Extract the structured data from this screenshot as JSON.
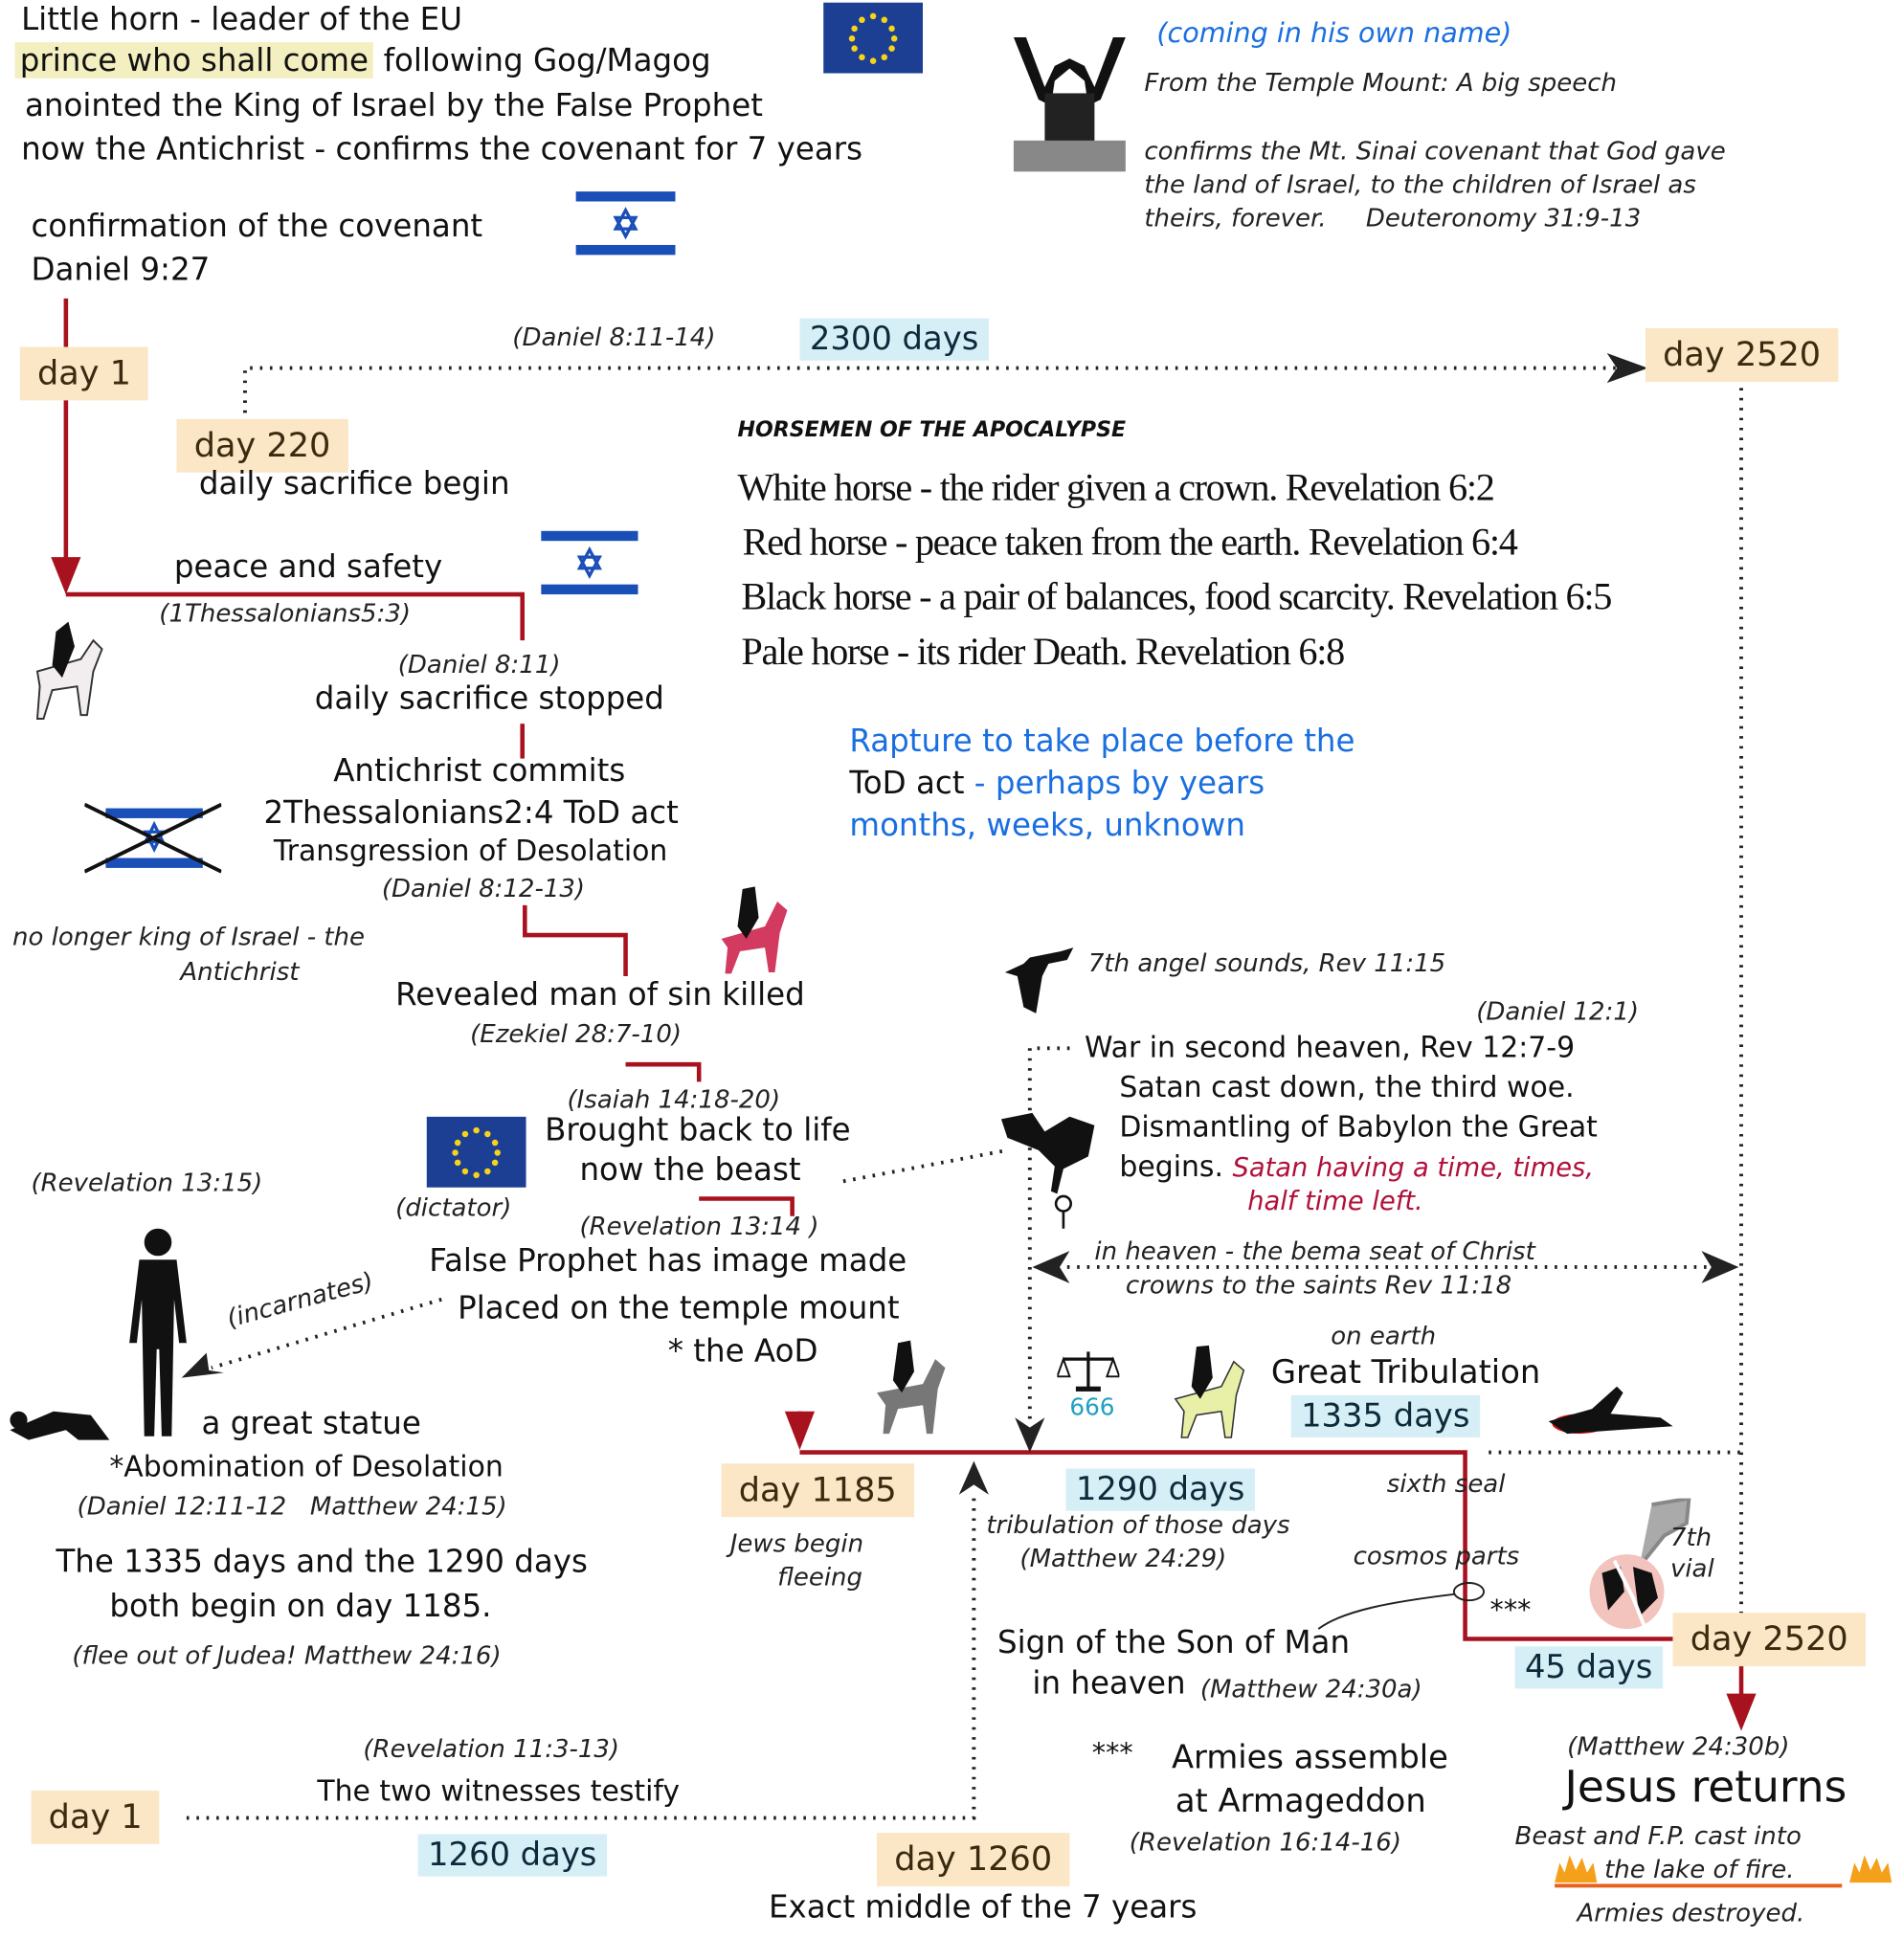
{
  "header": {
    "line1": "Little horn - leader of the EU",
    "line2_highlight": "prince who shall come",
    "line2_rest": "following Gog/Magog",
    "line3": "anointed the King of Israel by the False Prophet",
    "line4": "now the Antichrist - confirms the covenant for 7 years"
  },
  "speech": {
    "coming": "(coming in his own name)",
    "from": "From the Temple Mount:  A big speech",
    "confirms1": "confirms the Mt. Sinai covenant that God gave",
    "confirms2": "the land of Israel, to the children of Israel as",
    "confirms3": "theirs, forever.     Deuteronomy 31:9-13"
  },
  "covenant": {
    "line1": "confirmation of the covenant",
    "line2": "Daniel 9:27"
  },
  "timeline_top": {
    "day1": "day 1",
    "daniel81114": "(Daniel 8:11-14)",
    "days2300": "2300 days",
    "day2520": "day 2520",
    "day220": "day 220",
    "daily_begin": "daily sacrifice begin"
  },
  "horsemen": {
    "title": "HORSEMEN OF THE APOCALYPSE",
    "items": [
      "White horse - the rider given a crown.  Revelation 6:2",
      "Red horse - peace taken from the earth.  Revelation 6:4",
      "Black horse - a pair of balances, food scarcity.   Revelation 6:5",
      "Pale horse - its rider Death.   Revelation 6:8"
    ]
  },
  "rapture": {
    "line1": "Rapture to take place before the",
    "line2_black": "ToD act",
    "line2_blue": " - perhaps by years",
    "line3": "months, weeks, unknown",
    "color": "#1a6fe0"
  },
  "left_events": {
    "peace": "peace and safety",
    "thess": "(1Thessalonians5:3)",
    "daniel811": "(Daniel 8:11)",
    "stopped": "daily sacrifice stopped",
    "commits": "Antichrist commits",
    "tod": "2Thessalonians2:4 ToD act",
    "transgression": "Transgression of Desolation",
    "daniel81213": "(Daniel 8:12-13)",
    "nolonger1": "no longer king of Israel - the",
    "nolonger2": "Antichrist",
    "revealed": "Revealed man of sin killed",
    "ezekiel": "(Ezekiel 28:7-10)",
    "isaiah": "(Isaiah 14:18-20)",
    "brought": "Brought back to life",
    "beast": "now the beast",
    "dictator": "(dictator)",
    "rev1314": "(Revelation 13:14 )",
    "rev1315": "(Revelation 13:15)",
    "fp1": "False Prophet has image made",
    "fp2": "Placed on the temple mount",
    "fp3": "* the AoD",
    "incarnates": "(incarnates)",
    "statue": "a great statue",
    "aod": "*Abomination of Desolation",
    "dan_matt": "(Daniel 12:11-12   Matthew 24:15)",
    "both1": "The 1335 days and the 1290 days",
    "both2": "both begin on day 1185.",
    "flee": "(flee out of Judea! Matthew 24:16)"
  },
  "heaven": {
    "angel": "7th angel sounds, Rev 11:15",
    "daniel121": "(Daniel 12:1)",
    "war": "War in second heaven, Rev 12:7-9",
    "satan": "Satan cast down, the third woe.",
    "dismantling": "Dismantling of Babylon the Great",
    "begins": "begins.",
    "time1": "Satan having a time, times,",
    "time2": "half time left.",
    "bema1": "in heaven - the bema seat of Christ",
    "bema2": "crowns to the saints Rev 11:18",
    "time_color": "#b0103a"
  },
  "tribulation": {
    "mark666": "666",
    "on_earth": "on earth",
    "great": "Great Tribulation",
    "days1335": "1335 days",
    "day1185": "day 1185",
    "jews1": "Jews begin",
    "jews2": "fleeing",
    "days1290": "1290 days",
    "trib1": "tribulation of those days",
    "trib2": "(Matthew 24:29)",
    "sixth": "sixth seal",
    "cosmos": "cosmos parts",
    "stars": "***",
    "vial1": "7th",
    "vial2": "vial",
    "day2520": "day 2520",
    "days45": "45 days",
    "sign1": "Sign of the Son of Man",
    "sign2": "in heaven",
    "sign3": "(Matthew 24:30a)"
  },
  "bottom": {
    "rev113": "(Revelation 11:3-13)",
    "witnesses": "The two witnesses testify",
    "day1": "day 1",
    "days1260": "1260 days",
    "day1260": "day 1260",
    "middle": "Exact middle of the 7 years",
    "stars": "***",
    "armies1": "Armies assemble",
    "armies2": "at Armageddon",
    "rev1614": "(Revelation 16:14-16)",
    "matt30b": "(Matthew 24:30b)",
    "jesus": "Jesus returns",
    "beastfp": "Beast and F.P. cast into",
    "lake": "the lake of fire.",
    "destroyed": "Armies destroyed."
  },
  "colors": {
    "red_line": "#a8121e",
    "day_box": "#fbe6c6",
    "days_box": "#d6eff7",
    "highlight": "#f3efc0"
  }
}
